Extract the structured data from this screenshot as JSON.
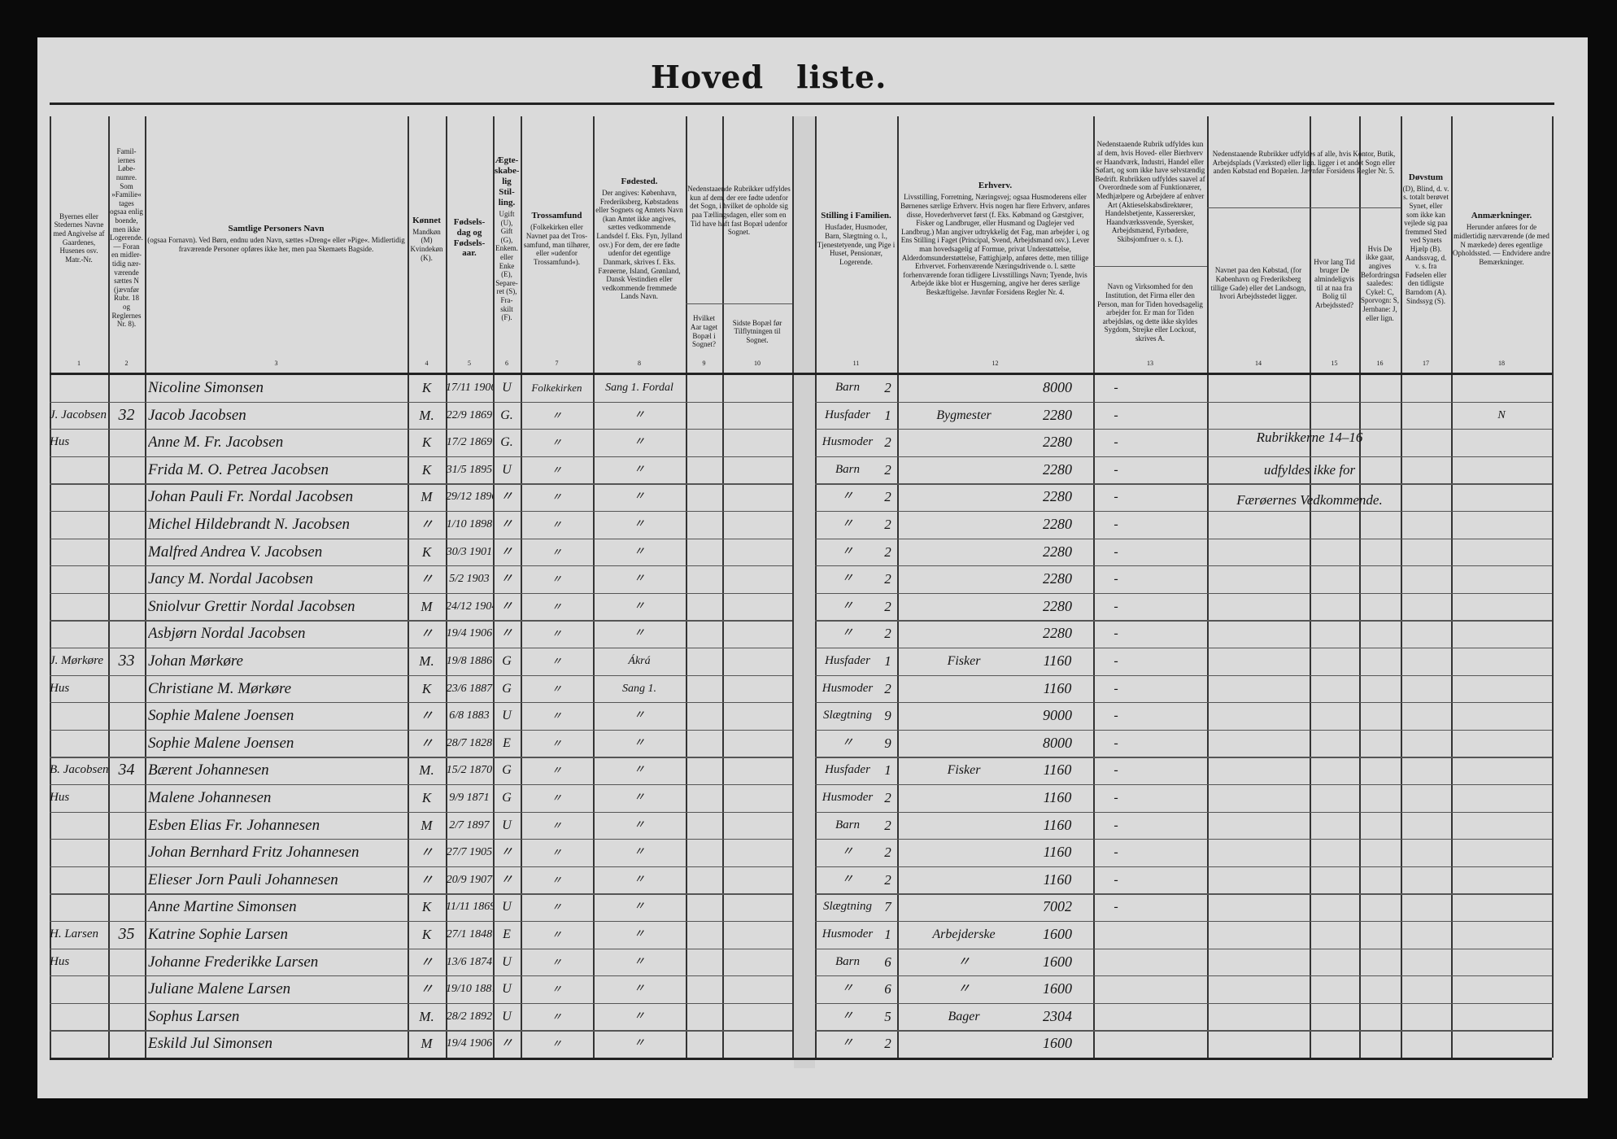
{
  "title": {
    "part1": "Hoved",
    "part2": "liste."
  },
  "headers": [
    {
      "col": "1",
      "title": "",
      "text": "Byernes eller Stedernes Navne med Angivelse af Gaardenes, Husenes osv. Matr.-Nr."
    },
    {
      "col": "2",
      "title": "",
      "text": "Famil-iernes Løbe-numre. Som »Familie« tages ogsaa enlig boende, men ikke Logerende. — Foran en midler-tidig nær-værende sættes N (jævnfør Rubr. 18 og Reglernes Nr. 8)."
    },
    {
      "col": "3",
      "title": "Samtlige Personers Navn",
      "text": "(ogsaa Fornavn). Ved Børn, endnu uden Navn, sættes »Dreng« eller »Pige«. Midlertidig fraværende Personer opføres ikke her, men paa Skemaets Bagside."
    },
    {
      "col": "4",
      "title": "Kønnet",
      "text": "Mandkøn (M) Kvindekøn (K)."
    },
    {
      "col": "5",
      "title": "Fødsels-dag og Fødsels-aar.",
      "text": ""
    },
    {
      "col": "6",
      "title": "Ægte-skabe-lig Stil-ling.",
      "text": "Ugift (U), Gift (G), Enkem. eller Enke (E), Separe-ret (S), Fra-skilt (F)."
    },
    {
      "col": "7",
      "title": "Trossamfund",
      "text": "(Folkekirken eller Navnet paa det Tros-samfund, man tilhører, eller »udenfor Trossamfund«)."
    },
    {
      "col": "8",
      "title": "Fødested.",
      "text": "Der angives: København, Frederiksberg, Købstadens eller Sognets og Amtets Navn (kan Amtet ikke angives, sættes vedkommende Landsdel f. Eks. Fyn, Jylland osv.) For dem, der ere fødte udenfor det egentlige Danmark, skrives f. Eks. Færøerne, Island, Grønland, Dansk Vestindien eller vedkommende fremmede Lands Navn."
    },
    {
      "col": "9-10",
      "title": "",
      "text": "Nedenstaaende Rubrikker udfyldes kun af dem, der ere fødte udenfor det Sogn, i hvilket de opholde sig paa Tællingsdagen, eller som en Tid have haft fast Bopæl udenfor Sognet."
    },
    {
      "col": "9",
      "title": "",
      "text": "Hvilket Aar taget Bopæl i Sognet?"
    },
    {
      "col": "10",
      "title": "",
      "text": "Sidste Bopæl før Tilflytningen til Sognet."
    },
    {
      "col": "11",
      "title": "Stilling i Familien.",
      "text": "Husfader, Husmoder, Barn, Slægtning o. l., Tjenestetyende, ung Pige i Huset, Pensionær, Logerende."
    },
    {
      "col": "12",
      "title": "Erhverv.",
      "text": "Livsstilling, Forretning, Næringsvej; ogsaa Husmoderens eller Børnenes særlige Erhverv. Hvis nogen har flere Erhverv, anføres disse, Hovederhvervet først (f. Eks. Købmand og Gæstgiver, Fisker og Landbruger, eller Husmand og Daglejer ved Landbrug.) Man angiver udtrykkelig det Fag, man arbejder i, og Ens Stilling i Faget (Principal, Svend, Arbejdsmand osv.). Lever man hovedsagelig af Formue, privat Understøttelse, Alderdomsunderstøttelse, Fattighjælp, anføres dette, men tillige Erhvervet. Forhenværende Næringsdrivende o. l. sætte forhenværende foran tidligere Livsstillings Navn; Tyende, hvis Arbejde ikke blot er Husgerning, angive her deres særlige Beskæftigelse. Jævnfør Forsidens Regler Nr. 4."
    },
    {
      "col": "13a",
      "title": "",
      "text": "Nedenstaaende Rubrik udfyldes kun af dem, hvis Hoved- eller Bierhverv er Haandværk, Industri, Handel eller Søfart, og som ikke have selvstændig Bedrift. Rubrikken udfyldes saavel af Overordnede som af Funktionærer, Medhjælpere og Arbejdere af enhver Art (Aktieselskabsdirektører, Handelsbetjente, Kasserersker, Haandværkssvende, Syersker, Arbejdsmænd, Fyrbødere, Skibsjomfruer o. s. f.)."
    },
    {
      "col": "13",
      "title": "",
      "text": "Navn og Virksomhed for den Institution, det Firma eller den Person, man for Tiden hovedsagelig arbejder for. Er man for Tiden arbejdsløs, og dette ikke skyldes Sygdom, Strejke eller Lockout, skrives A."
    },
    {
      "col": "14-16",
      "title": "",
      "text": "Nedenstaaende Rubrikker udfyldes af alle, hvis Kontor, Butik, Arbejdsplads (Værksted) eller lign. ligger i et andet Sogn eller anden Købstad end Bopælen. Jævnfør Forsidens Regler Nr. 5."
    },
    {
      "col": "14",
      "title": "",
      "text": "Navnet paa den Købstad, (for København og Frederiksberg tillige Gade) eller det Landsogn, hvori Arbejdsstedet ligger."
    },
    {
      "col": "15",
      "title": "",
      "text": "Hvor lang Tid bruger De almindeligvis til at naa fra Bolig til Arbejdssted?"
    },
    {
      "col": "16",
      "title": "",
      "text": "Hvis De ikke gaar, angives Befordringsmidlet saaledes: Cykel: C, Sporvogn: S, Jernbane: J, eller lign."
    },
    {
      "col": "17",
      "title": "Døvstum",
      "text": "(D), Blind, d. v. s. totalt berøvet Synet, eller som ikke kan vejlede sig paa fremmed Sted ved Synets Hjælp (B). Aandssvag, d. v. s. fra Fødselen eller den tidligste Barndom (A). Sindssyg (S)."
    },
    {
      "col": "18",
      "title": "Anmærkninger.",
      "text": "Herunder anføres for de midlertidig nærværende (de med N mærkede) deres egentlige Opholdssted. — Endvidere andre Bemærkninger."
    }
  ],
  "column_numbers": [
    "1",
    "2",
    "3",
    "4",
    "5",
    "6",
    "7",
    "8",
    "9",
    "10",
    "11",
    "12",
    "13",
    "14",
    "15",
    "16",
    "17",
    "18"
  ],
  "rows": [
    {
      "place": "",
      "fam": "",
      "name": "Nicoline Simonsen",
      "sex": "K",
      "born": "17/11 1906",
      "civil": "U",
      "faith": "Folkekirken",
      "birthplace": "Sang 1. Fordal",
      "position": "Barn",
      "pos_no": "2",
      "occupation": "",
      "occ_no": "8000",
      "c13": "-",
      "remark": ""
    },
    {
      "place": "J. Jacobsen",
      "fam": "32",
      "name": "Jacob Jacobsen",
      "sex": "M.",
      "born": "22/9 1869",
      "civil": "G.",
      "faith": "〃",
      "birthplace": "〃",
      "position": "Husfader",
      "pos_no": "1",
      "occupation": "Bygmester",
      "occ_no": "2280",
      "c13": "-",
      "remark": "N"
    },
    {
      "place": "Hus",
      "fam": "",
      "name": "Anne M. Fr. Jacobsen",
      "sex": "K",
      "born": "17/2 1869",
      "civil": "G.",
      "faith": "〃",
      "birthplace": "〃",
      "position": "Husmoder",
      "pos_no": "2",
      "occupation": "",
      "occ_no": "2280",
      "c13": "-",
      "remark": ""
    },
    {
      "place": "",
      "fam": "",
      "name": "Frida M. O. Petrea Jacobsen",
      "sex": "K",
      "born": "31/5 1895",
      "civil": "U",
      "faith": "〃",
      "birthplace": "〃",
      "position": "Barn",
      "pos_no": "2",
      "occupation": "",
      "occ_no": "2280",
      "c13": "-",
      "remark": ""
    },
    {
      "place": "",
      "fam": "",
      "name": "Johan Pauli Fr. Nordal Jacobsen",
      "sex": "M",
      "born": "29/12 1896",
      "civil": "〃",
      "faith": "〃",
      "birthplace": "〃",
      "position": "〃",
      "pos_no": "2",
      "occupation": "",
      "occ_no": "2280",
      "c13": "-",
      "remark": ""
    },
    {
      "place": "",
      "fam": "",
      "name": "Michel Hildebrandt N. Jacobsen",
      "sex": "〃",
      "born": "1/10 1898",
      "civil": "〃",
      "faith": "〃",
      "birthplace": "〃",
      "position": "〃",
      "pos_no": "2",
      "occupation": "",
      "occ_no": "2280",
      "c13": "-",
      "remark": ""
    },
    {
      "place": "",
      "fam": "",
      "name": "Malfred Andrea V. Jacobsen",
      "sex": "K",
      "born": "30/3 1901",
      "civil": "〃",
      "faith": "〃",
      "birthplace": "〃",
      "position": "〃",
      "pos_no": "2",
      "occupation": "",
      "occ_no": "2280",
      "c13": "-",
      "remark": ""
    },
    {
      "place": "",
      "fam": "",
      "name": "Jancy M. Nordal Jacobsen",
      "sex": "〃",
      "born": "5/2 1903",
      "civil": "〃",
      "faith": "〃",
      "birthplace": "〃",
      "position": "〃",
      "pos_no": "2",
      "occupation": "",
      "occ_no": "2280",
      "c13": "-",
      "remark": ""
    },
    {
      "place": "",
      "fam": "",
      "name": "Sniolvur Grettir Nordal Jacobsen",
      "sex": "M",
      "born": "24/12 1904",
      "civil": "〃",
      "faith": "〃",
      "birthplace": "〃",
      "position": "〃",
      "pos_no": "2",
      "occupation": "",
      "occ_no": "2280",
      "c13": "-",
      "remark": ""
    },
    {
      "place": "",
      "fam": "",
      "name": "Asbjørn Nordal Jacobsen",
      "sex": "〃",
      "born": "19/4 1906",
      "civil": "〃",
      "faith": "〃",
      "birthplace": "〃",
      "position": "〃",
      "pos_no": "2",
      "occupation": "",
      "occ_no": "2280",
      "c13": "-",
      "remark": ""
    },
    {
      "place": "J. Mørkøre",
      "fam": "33",
      "name": "Johan Mørkøre",
      "sex": "M.",
      "born": "19/8 1886",
      "civil": "G",
      "faith": "〃",
      "birthplace": "Ákrá",
      "position": "Husfader",
      "pos_no": "1",
      "occupation": "Fisker",
      "occ_no": "1160",
      "c13": "-",
      "remark": ""
    },
    {
      "place": "Hus",
      "fam": "",
      "name": "Christiane M. Mørkøre",
      "sex": "K",
      "born": "23/6 1887",
      "civil": "G",
      "faith": "〃",
      "birthplace": "Sang 1.",
      "position": "Husmoder",
      "pos_no": "2",
      "occupation": "",
      "occ_no": "1160",
      "c13": "-",
      "remark": ""
    },
    {
      "place": "",
      "fam": "",
      "name": "Sophie Malene Joensen",
      "sex": "〃",
      "born": "6/8 1883",
      "civil": "U",
      "faith": "〃",
      "birthplace": "〃",
      "position": "Slægtning",
      "pos_no": "9",
      "occupation": "",
      "occ_no": "9000",
      "c13": "-",
      "remark": ""
    },
    {
      "place": "",
      "fam": "",
      "name": "Sophie Malene Joensen",
      "sex": "〃",
      "born": "28/7 1828",
      "civil": "E",
      "faith": "〃",
      "birthplace": "〃",
      "position": "〃",
      "pos_no": "9",
      "occupation": "",
      "occ_no": "8000",
      "c13": "-",
      "remark": ""
    },
    {
      "place": "B. Jacobsen",
      "fam": "34",
      "name": "Bærent Johannesen",
      "sex": "M.",
      "born": "15/2 1870",
      "civil": "G",
      "faith": "〃",
      "birthplace": "〃",
      "position": "Husfader",
      "pos_no": "1",
      "occupation": "Fisker",
      "occ_no": "1160",
      "c13": "-",
      "remark": ""
    },
    {
      "place": "Hus",
      "fam": "",
      "name": "Malene Johannesen",
      "sex": "K",
      "born": "9/9 1871",
      "civil": "G",
      "faith": "〃",
      "birthplace": "〃",
      "position": "Husmoder",
      "pos_no": "2",
      "occupation": "",
      "occ_no": "1160",
      "c13": "-",
      "remark": ""
    },
    {
      "place": "",
      "fam": "",
      "name": "Esben Elias Fr. Johannesen",
      "sex": "M",
      "born": "2/7 1897",
      "civil": "U",
      "faith": "〃",
      "birthplace": "〃",
      "position": "Barn",
      "pos_no": "2",
      "occupation": "",
      "occ_no": "1160",
      "c13": "-",
      "remark": ""
    },
    {
      "place": "",
      "fam": "",
      "name": "Johan Bernhard Fritz Johannesen",
      "sex": "〃",
      "born": "27/7 1905",
      "civil": "〃",
      "faith": "〃",
      "birthplace": "〃",
      "position": "〃",
      "pos_no": "2",
      "occupation": "",
      "occ_no": "1160",
      "c13": "-",
      "remark": ""
    },
    {
      "place": "",
      "fam": "",
      "name": "Elieser Jorn Pauli Johannesen",
      "sex": "〃",
      "born": "20/9 1907",
      "civil": "〃",
      "faith": "〃",
      "birthplace": "〃",
      "position": "〃",
      "pos_no": "2",
      "occupation": "",
      "occ_no": "1160",
      "c13": "-",
      "remark": ""
    },
    {
      "place": "",
      "fam": "",
      "name": "Anne Martine Simonsen",
      "sex": "K",
      "born": "11/11 1869",
      "civil": "U",
      "faith": "〃",
      "birthplace": "〃",
      "position": "Slægtning",
      "pos_no": "7",
      "occupation": "",
      "occ_no": "7002",
      "c13": "-",
      "remark": ""
    },
    {
      "place": "H. Larsen",
      "fam": "35",
      "name": "Katrine Sophie Larsen",
      "sex": "K",
      "born": "27/1 1848",
      "civil": "E",
      "faith": "〃",
      "birthplace": "〃",
      "position": "Husmoder",
      "pos_no": "1",
      "occupation": "Arbejderske",
      "occ_no": "1600",
      "c13": "",
      "remark": ""
    },
    {
      "place": "Hus",
      "fam": "",
      "name": "Johanne Frederikke Larsen",
      "sex": "〃",
      "born": "13/6 1874",
      "civil": "U",
      "faith": "〃",
      "birthplace": "〃",
      "position": "Barn",
      "pos_no": "6",
      "occupation": "〃",
      "occ_no": "1600",
      "c13": "",
      "remark": ""
    },
    {
      "place": "",
      "fam": "",
      "name": "Juliane Malene Larsen",
      "sex": "〃",
      "born": "19/10 1881",
      "civil": "U",
      "faith": "〃",
      "birthplace": "〃",
      "position": "〃",
      "pos_no": "6",
      "occupation": "〃",
      "occ_no": "1600",
      "c13": "",
      "remark": ""
    },
    {
      "place": "",
      "fam": "",
      "name": "Sophus Larsen",
      "sex": "M.",
      "born": "28/2 1892",
      "civil": "U",
      "faith": "〃",
      "birthplace": "〃",
      "position": "〃",
      "pos_no": "5",
      "occupation": "Bager",
      "occ_no": "2304",
      "c13": "",
      "remark": ""
    },
    {
      "place": "",
      "fam": "",
      "name": "Eskild Jul Simonsen",
      "sex": "M",
      "born": "19/4 1906",
      "civil": "〃",
      "faith": "〃",
      "birthplace": "〃",
      "position": "〃",
      "pos_no": "2",
      "occupation": "",
      "occ_no": "1600",
      "c13": "",
      "remark": ""
    }
  ],
  "stamp_note": {
    "line1": "Rubrikkerne 14–16",
    "line2": "udfyldes ikke for",
    "line3": "Færøernes Vedkommende."
  }
}
